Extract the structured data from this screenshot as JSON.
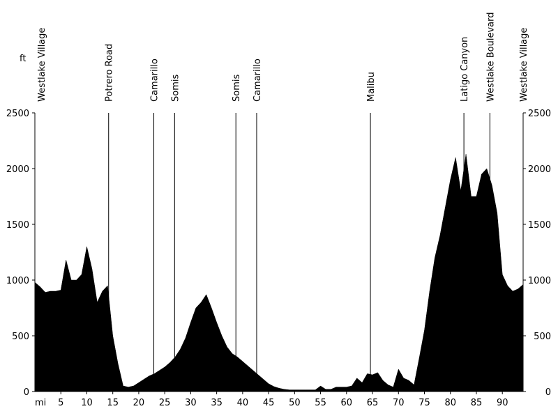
{
  "chart_data": {
    "type": "area",
    "y_label": "ft",
    "x_label": "mi",
    "x": [
      0,
      1,
      2,
      3,
      4,
      5,
      6,
      7,
      8,
      9,
      10,
      11,
      12,
      13,
      14,
      15,
      16,
      17,
      18,
      19,
      20,
      21,
      22,
      23,
      24,
      25,
      26,
      27,
      28,
      29,
      30,
      31,
      32,
      33,
      34,
      35,
      36,
      37,
      38,
      39,
      40,
      41,
      42,
      43,
      44,
      45,
      46,
      47,
      48,
      49,
      50,
      51,
      52,
      53,
      54,
      55,
      56,
      57,
      58,
      59,
      60,
      61,
      62,
      63,
      64,
      65,
      66,
      67,
      68,
      69,
      70,
      71,
      72,
      73,
      74,
      75,
      76,
      77,
      78,
      79,
      80,
      81,
      82,
      83,
      84,
      85,
      86,
      87,
      88,
      89,
      90,
      91,
      92,
      93,
      94
    ],
    "values": [
      980,
      940,
      890,
      900,
      900,
      910,
      1180,
      1000,
      1000,
      1050,
      1300,
      1100,
      800,
      900,
      950,
      500,
      250,
      50,
      40,
      50,
      80,
      110,
      140,
      160,
      190,
      220,
      260,
      310,
      380,
      480,
      620,
      750,
      800,
      870,
      750,
      620,
      500,
      400,
      340,
      310,
      270,
      230,
      190,
      150,
      110,
      70,
      45,
      30,
      20,
      15,
      15,
      15,
      15,
      15,
      15,
      50,
      20,
      20,
      40,
      40,
      40,
      50,
      120,
      80,
      160,
      150,
      170,
      100,
      60,
      40,
      200,
      120,
      100,
      60,
      300,
      550,
      900,
      1200,
      1400,
      1650,
      1900,
      2100,
      1800,
      2130,
      1750,
      1750,
      1950,
      2000,
      1850,
      1600,
      1050,
      950,
      900,
      920,
      960
    ],
    "color": "#000000",
    "xlim": [
      0,
      94
    ],
    "ylim": [
      0,
      2500
    ],
    "xticks": [
      5,
      10,
      15,
      20,
      25,
      30,
      35,
      40,
      45,
      50,
      55,
      60,
      65,
      70,
      75,
      80,
      85,
      90
    ],
    "yticks": [
      0,
      500,
      1000,
      1500,
      2000,
      2500
    ],
    "waypoints": [
      {
        "name": "Westlake Village",
        "x": 0
      },
      {
        "name": "Potrero Road",
        "x": 14.2
      },
      {
        "name": "Camarillo",
        "x": 22.9
      },
      {
        "name": "Somis",
        "x": 26.9
      },
      {
        "name": "Somis",
        "x": 38.7
      },
      {
        "name": "Camarillo",
        "x": 42.7
      },
      {
        "name": "Malibu",
        "x": 64.6
      },
      {
        "name": "Latigo Canyon",
        "x": 82.6
      },
      {
        "name": "Westlake Boulevard",
        "x": 87.6
      },
      {
        "name": "Westlake Village",
        "x": 94
      }
    ]
  }
}
